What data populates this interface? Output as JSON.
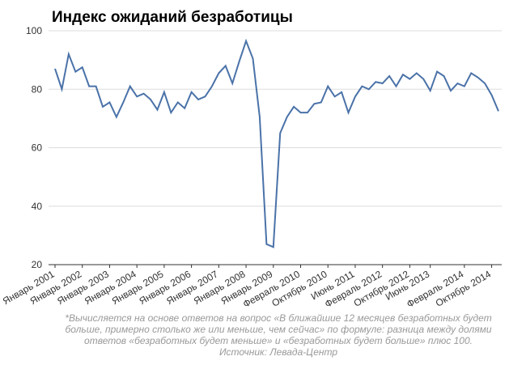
{
  "chart_data": {
    "type": "line",
    "title": "Индекс ожиданий безработицы",
    "categories": [
      "Январь 2001",
      null,
      null,
      null,
      "Январь 2002",
      null,
      null,
      null,
      "Январь 2003",
      null,
      null,
      null,
      "Январь 2004",
      null,
      null,
      null,
      "Январь 2005",
      null,
      null,
      null,
      "Январь 2006",
      null,
      null,
      null,
      "Январь 2007",
      null,
      null,
      null,
      "Январь 2008",
      null,
      null,
      null,
      "Январь 2009",
      null,
      null,
      null,
      "Февраль 2010",
      null,
      null,
      null,
      "Октябрь 2010",
      null,
      null,
      null,
      "Июнь 2011",
      null,
      null,
      null,
      "Февраль 2012",
      null,
      null,
      null,
      "Октябрь 2012",
      null,
      null,
      "Июнь 2013",
      null,
      null,
      null,
      null,
      "Февраль 2014",
      null,
      null,
      null,
      "Октябрь 2014",
      null
    ],
    "series": [
      {
        "color": "#4a72a8",
        "values": [
          87,
          80,
          92,
          86,
          87.5,
          81,
          81,
          74,
          75.5,
          70.5,
          75.5,
          81,
          77.5,
          78.5,
          76.5,
          73,
          79,
          72,
          75.5,
          73.5,
          79,
          76.5,
          77.5,
          81,
          85.5,
          88,
          82,
          89.5,
          96.5,
          90.5,
          70.5,
          27,
          26,
          65,
          70.5,
          74,
          72,
          72,
          75,
          75.5,
          81,
          77.5,
          79,
          72,
          77.5,
          81,
          80,
          82.5,
          82,
          84.5,
          81,
          85,
          83.5,
          85.5,
          83.5,
          79.5,
          86,
          84.5,
          79.5,
          82,
          81,
          85.5,
          84,
          82,
          78,
          72.5
        ]
      }
    ],
    "ylim": [
      20,
      100
    ],
    "yticks": [
      20,
      40,
      60,
      80,
      100
    ],
    "grid": true,
    "footnote": [
      "*Вычисляется на основе ответов на вопрос «В ближайшие 12 месяцев безработных будет",
      "больше, примерно столько же или меньше, чем сейчас» по формуле: разница между долями",
      "ответов «безработных будет меньше» и «безработных будет больше» плюс 100.",
      "Источник: Левада-Центр"
    ]
  }
}
